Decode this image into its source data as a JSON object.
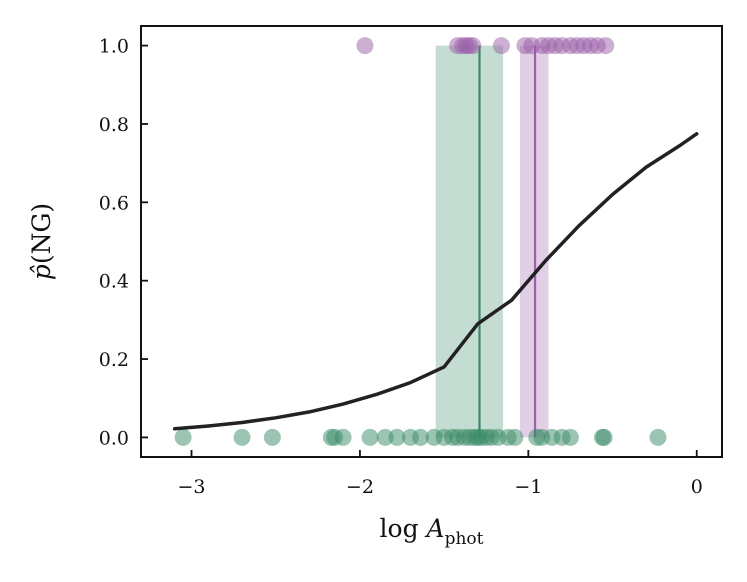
{
  "chart_data": {
    "type": "scatter",
    "title": "",
    "xlabel": {
      "main": "log ",
      "var": "A",
      "sub": "phot"
    },
    "ylabel": {
      "hat": "p̂",
      "text": "(NG)"
    },
    "xlim": [
      -3.3,
      0.15
    ],
    "ylim": [
      -0.05,
      1.05
    ],
    "xticks": [
      -3,
      -2,
      -1,
      0
    ],
    "xtick_labels": [
      "−3",
      "−2",
      "−1",
      "0"
    ],
    "yticks": [
      0.0,
      0.2,
      0.4,
      0.6,
      0.8,
      1.0
    ],
    "ytick_labels": [
      "0.0",
      "0.2",
      "0.4",
      "0.6",
      "0.8",
      "1.0"
    ],
    "grid": false,
    "colors": {
      "green": "#3a8a66",
      "purple": "#9a5fa8",
      "curve": "#222222"
    },
    "bands": [
      {
        "name": "green-band",
        "x0": -1.55,
        "x1": -1.15,
        "color": "#3a8a66"
      },
      {
        "name": "purple-band",
        "x0": -1.05,
        "x1": -0.88,
        "color": "#9a5fa8"
      }
    ],
    "vlines": [
      {
        "name": "green-median-line",
        "x": -1.29,
        "color": "#3a8a66"
      },
      {
        "name": "purple-median-line",
        "x": -0.96,
        "color": "#9a5fa8"
      }
    ],
    "series": [
      {
        "color": "#3a8a66",
        "x": [
          -3.05,
          -2.7,
          -2.52,
          -2.17,
          -2.15,
          -2.1,
          -1.94,
          -1.85,
          -1.78,
          -1.7,
          -1.64,
          -1.56,
          -1.5,
          -1.45,
          -1.42,
          -1.38,
          -1.35,
          -1.32,
          -1.3,
          -1.28,
          -1.25,
          -1.22,
          -1.18,
          -1.12,
          -1.08,
          -0.95,
          -0.92,
          -0.86,
          -0.8,
          -0.75,
          -0.56,
          -0.55,
          -0.23
        ],
        "y": [
          0,
          0,
          0,
          0,
          0,
          0,
          0,
          0,
          0,
          0,
          0,
          0,
          0,
          0,
          0,
          0,
          0,
          0,
          0,
          0,
          0,
          0,
          0,
          0,
          0,
          0,
          0,
          0,
          0,
          0,
          0,
          0,
          0
        ]
      },
      {
        "color": "#9a5fa8",
        "x": [
          -1.97,
          -1.42,
          -1.39,
          -1.37,
          -1.35,
          -1.33,
          -1.16,
          -1.02,
          -0.98,
          -0.92,
          -0.88,
          -0.84,
          -0.8,
          -0.75,
          -0.71,
          -0.67,
          -0.63,
          -0.59,
          -0.54
        ],
        "y": [
          1,
          1,
          1,
          1,
          1,
          1,
          1,
          1,
          1,
          1,
          1,
          1,
          1,
          1,
          1,
          1,
          1,
          1,
          1
        ]
      }
    ],
    "curve": {
      "x": [
        -3.1,
        -2.9,
        -2.7,
        -2.5,
        -2.3,
        -2.1,
        -1.9,
        -1.7,
        -1.5,
        -1.3,
        -1.1,
        -0.9,
        -0.7,
        -0.5,
        -0.3,
        -0.1,
        0.0
      ],
      "y": [
        0.022,
        0.029,
        0.038,
        0.05,
        0.065,
        0.085,
        0.11,
        0.14,
        0.18,
        0.29,
        0.35,
        0.45,
        0.54,
        0.62,
        0.69,
        0.745,
        0.775
      ]
    }
  }
}
